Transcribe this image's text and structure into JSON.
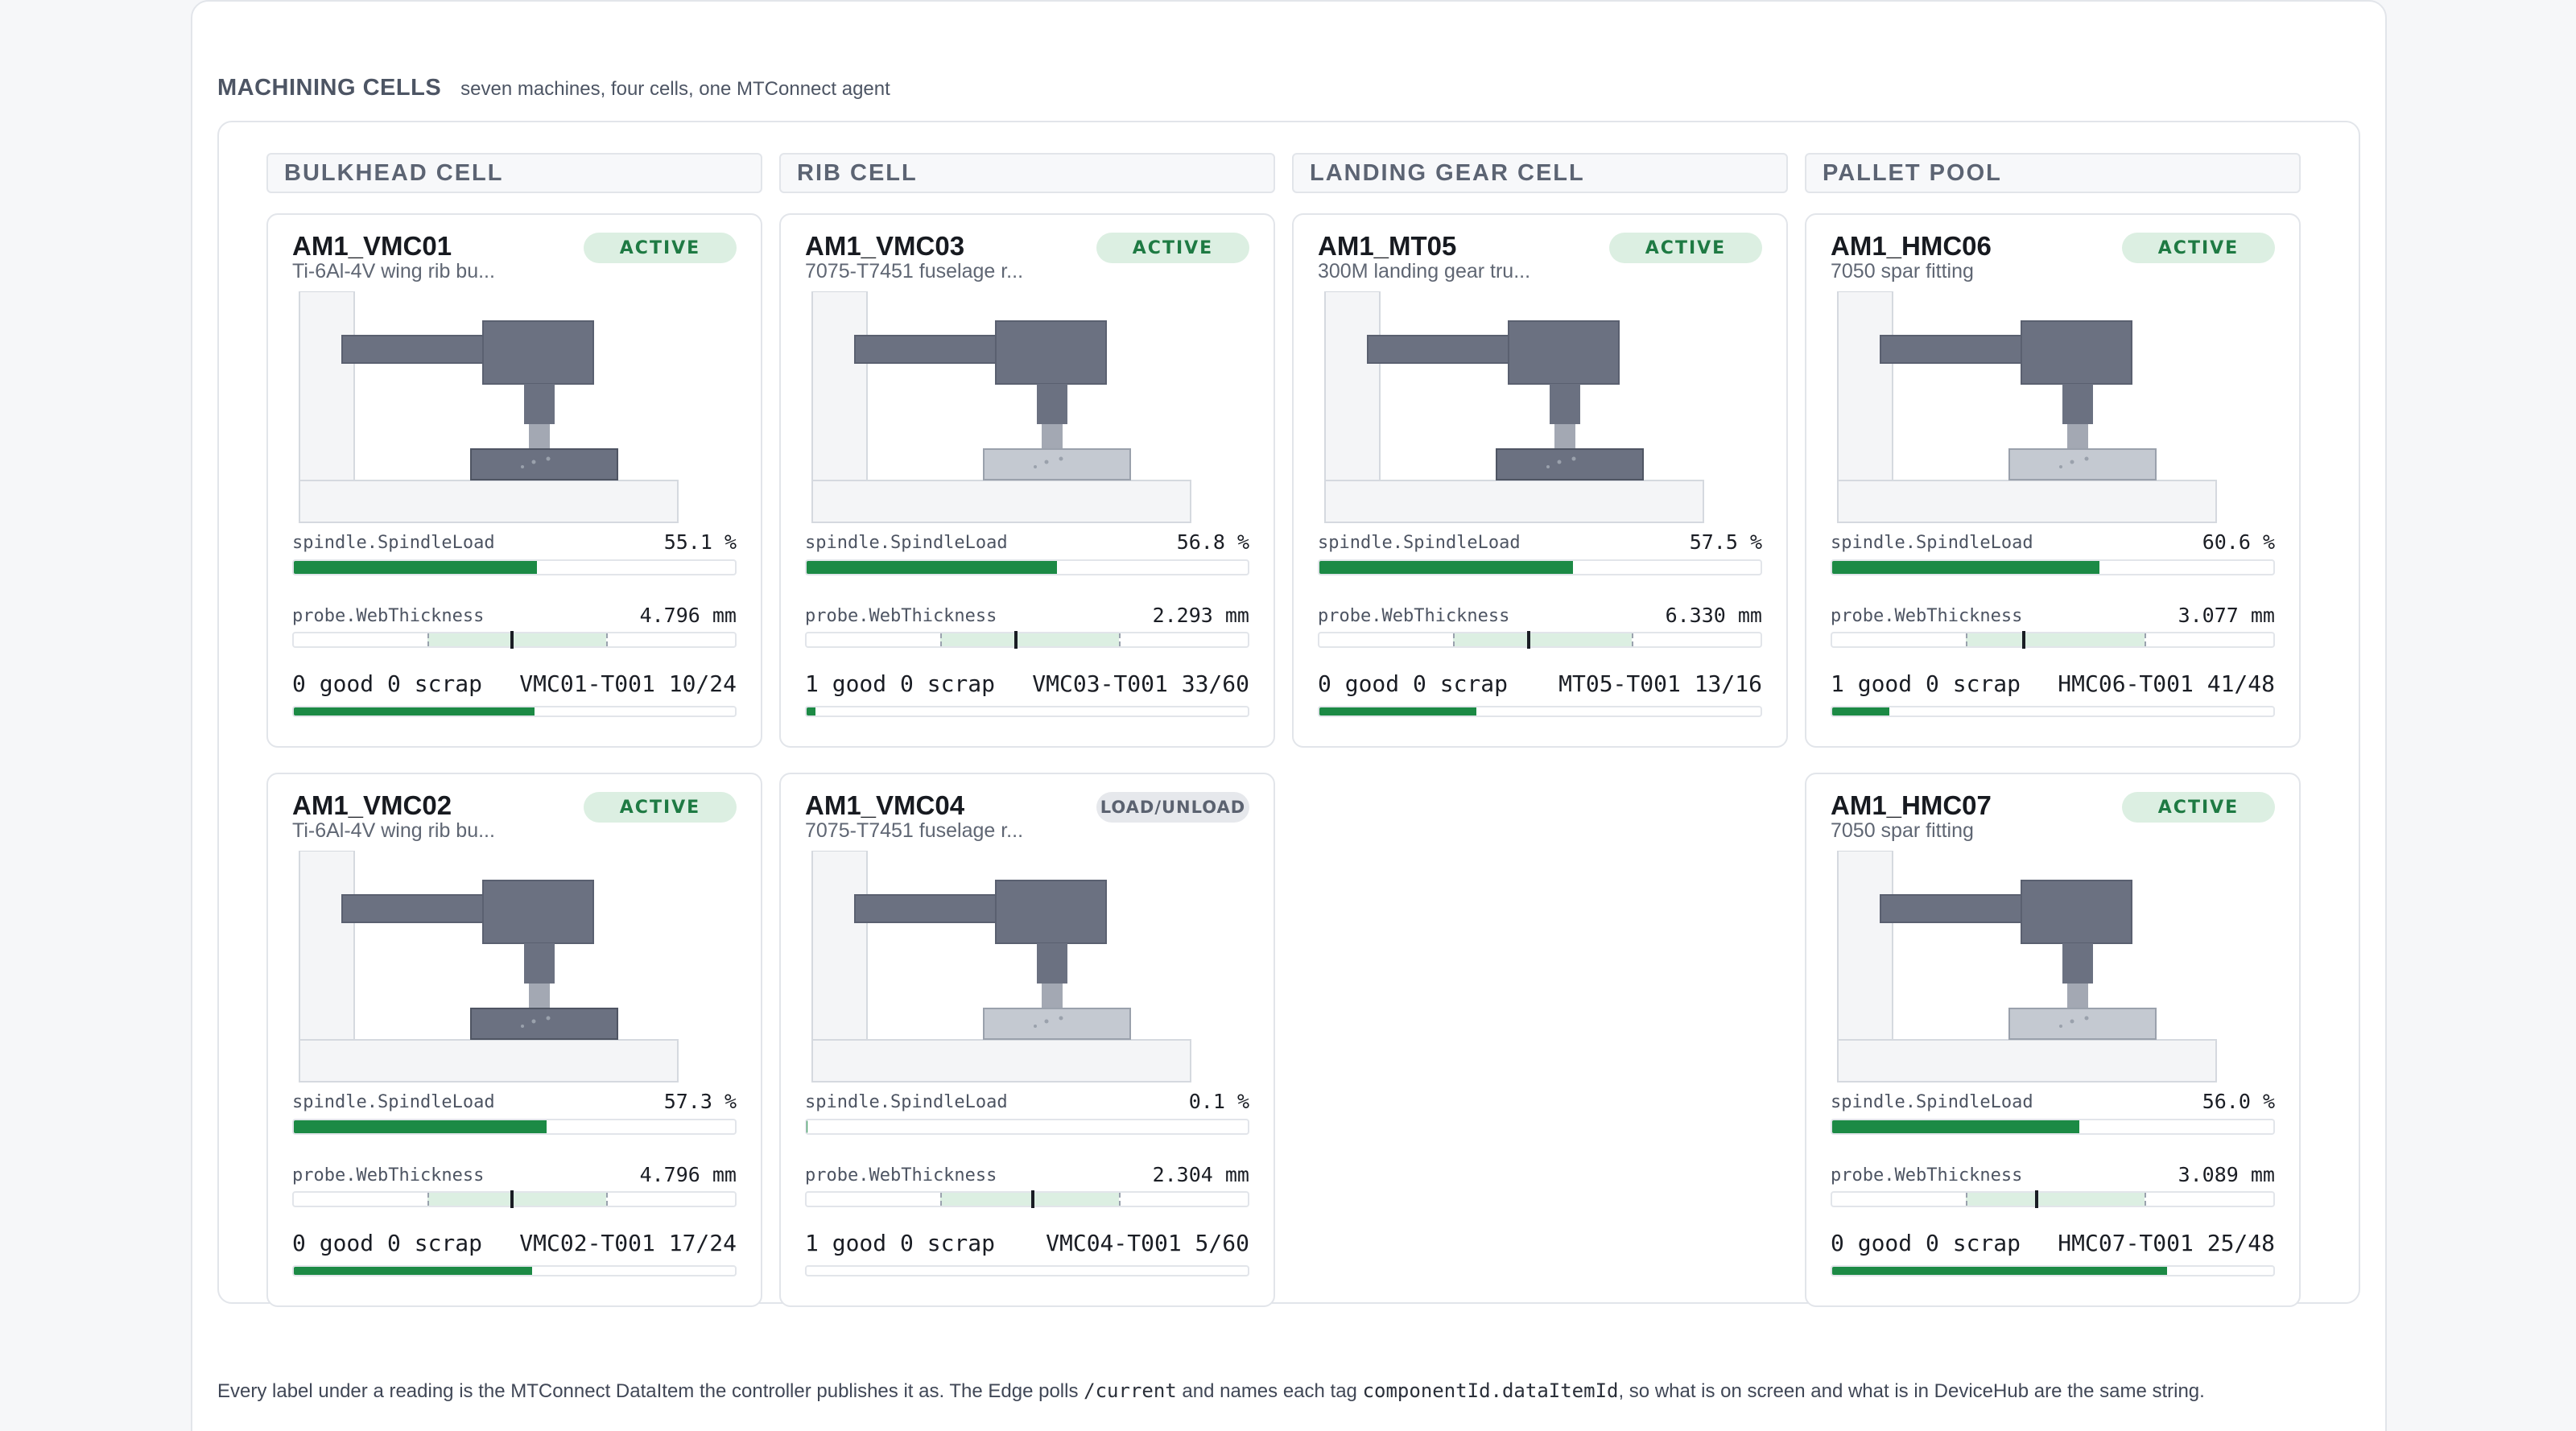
{
  "header": {
    "title": "MACHINING CELLS",
    "subtitle": "seven machines, four cells, one MTConnect agent"
  },
  "cells": [
    "BULKHEAD CELL",
    "RIB CELL",
    "LANDING GEAR CELL",
    "PALLET POOL"
  ],
  "labels": {
    "load": "spindle.SpindleLoad",
    "thickness": "probe.WebThickness"
  },
  "colors": {
    "active_fill": "#1c8a45",
    "badge_active_bg": "#dcefe2",
    "machine_gray": "#6b7181"
  },
  "machines": [
    {
      "name": "AM1_VMC01",
      "part": "Ti-6Al-4V wing rib bu...",
      "status": "ACTIVE",
      "load_text": "55.1 %",
      "load": 55.1,
      "thick_text": "4.796 mm",
      "thick_pos": 0.49,
      "counts": "0 good 0 scrap",
      "tool": "VMC01-T001 10/24",
      "progress": 0.545,
      "table_dark": true
    },
    {
      "name": "AM1_VMC03",
      "part": "7075-T7451 fuselage r...",
      "status": "ACTIVE",
      "load_text": "56.8 %",
      "load": 56.8,
      "thick_text": "2.293 mm",
      "thick_pos": 0.47,
      "counts": "1 good 0 scrap",
      "tool": "VMC03-T001 33/60",
      "progress": 0.02,
      "table_dark": false
    },
    {
      "name": "AM1_MT05",
      "part": "300M landing gear tru...",
      "status": "ACTIVE",
      "load_text": "57.5 %",
      "load": 57.5,
      "thick_text": "6.330 mm",
      "thick_pos": 0.47,
      "counts": "0 good 0 scrap",
      "tool": "MT05-T001 13/16",
      "progress": 0.355,
      "table_dark": true
    },
    {
      "name": "AM1_HMC06",
      "part": "7050 spar fitting",
      "status": "ACTIVE",
      "load_text": "60.6 %",
      "load": 60.6,
      "thick_text": "3.077 mm",
      "thick_pos": 0.43,
      "counts": "1 good 0 scrap",
      "tool": "HMC06-T001 41/48",
      "progress": 0.13,
      "table_dark": false
    },
    {
      "name": "AM1_VMC02",
      "part": "Ti-6Al-4V wing rib bu...",
      "status": "ACTIVE",
      "load_text": "57.3 %",
      "load": 57.3,
      "thick_text": "4.796 mm",
      "thick_pos": 0.49,
      "counts": "0 good 0 scrap",
      "tool": "VMC02-T001 17/24",
      "progress": 0.54,
      "table_dark": true
    },
    {
      "name": "AM1_VMC04",
      "part": "7075-T7451 fuselage r...",
      "status": "LOAD/UNLOAD",
      "load_text": "0.1 %",
      "load": 0.1,
      "thick_text": "2.304 mm",
      "thick_pos": 0.51,
      "counts": "1 good 0 scrap",
      "tool": "VMC04-T001 5/60",
      "progress": 0.0,
      "table_dark": false
    },
    {
      "name": "AM1_HMC07",
      "part": "7050 spar fitting",
      "status": "ACTIVE",
      "load_text": "56.0 %",
      "load": 56.0,
      "thick_text": "3.089 mm",
      "thick_pos": 0.46,
      "counts": "0 good 0 scrap",
      "tool": "HMC07-T001 25/48",
      "progress": 0.76,
      "table_dark": false
    }
  ],
  "footer": {
    "part1": "Every label under a reading is the MTConnect DataItem the controller publishes it as. The Edge polls",
    "code1": "/current",
    "part2": "and names each tag",
    "code2": "componentId.dataItemId",
    "part3": ", so what is on screen and what is in DeviceHub are the same string."
  }
}
